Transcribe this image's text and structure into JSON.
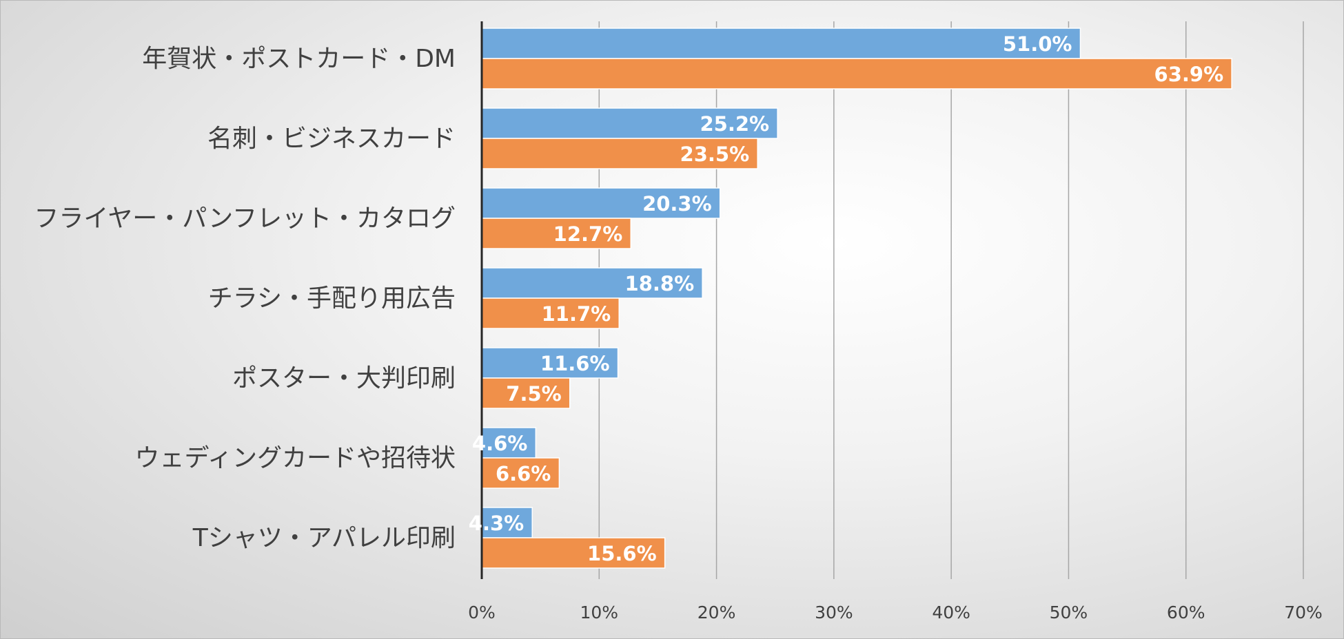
{
  "chart_data": {
    "type": "bar",
    "orientation": "horizontal",
    "categories": [
      "年賀状・ポストカード・DM",
      "名刺・ビジネスカード",
      "フライヤー・パンフレット・カタログ",
      "チラシ・手配り用広告",
      "ポスター・大判印刷",
      "ウェディングカードや招待状",
      "Tシャツ・アパレル印刷"
    ],
    "series": [
      {
        "color": "#6fa8dc",
        "values": [
          51.0,
          25.2,
          20.3,
          18.8,
          11.6,
          4.6,
          4.3
        ],
        "labels": [
          "51.0%",
          "25.2%",
          "20.3%",
          "18.8%",
          "11.6%",
          "4.6%",
          "4.3%"
        ]
      },
      {
        "color": "#f0904a",
        "values": [
          63.9,
          23.5,
          12.7,
          11.7,
          7.5,
          6.6,
          15.6
        ],
        "labels": [
          "63.9%",
          "23.5%",
          "12.7%",
          "11.7%",
          "7.5%",
          "6.6%",
          "15.6%"
        ]
      }
    ],
    "xlim": [
      0,
      70
    ],
    "ticks": [
      0,
      10,
      20,
      30,
      40,
      50,
      60,
      70
    ],
    "tick_labels": [
      "0%",
      "10%",
      "20%",
      "30%",
      "40%",
      "50%",
      "60%",
      "70%"
    ],
    "grid": true,
    "legend": false,
    "title": ""
  }
}
